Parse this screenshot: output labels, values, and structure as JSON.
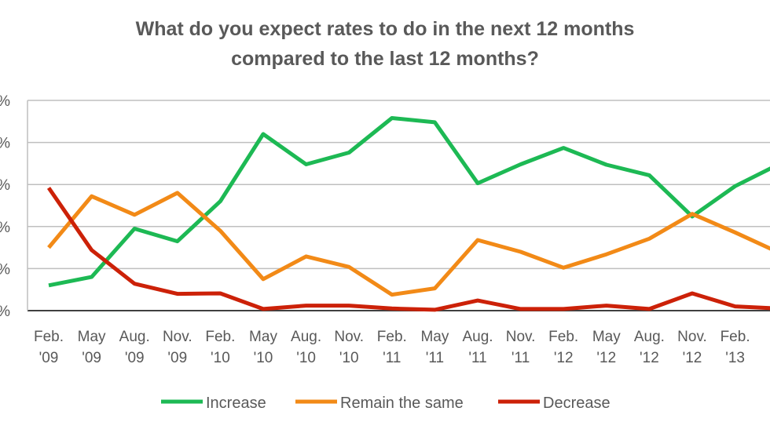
{
  "chart_data": {
    "type": "line",
    "title_lines": [
      "What do you expect rates to do in the next 12 months",
      "compared to the last 12 months?"
    ],
    "categories": [
      [
        "Feb.",
        "'09"
      ],
      [
        "May",
        "'09"
      ],
      [
        "Aug.",
        "'09"
      ],
      [
        "Nov.",
        "'09"
      ],
      [
        "Feb.",
        "'10"
      ],
      [
        "May",
        "'10"
      ],
      [
        "Aug.",
        "'10"
      ],
      [
        "Nov.",
        "'10"
      ],
      [
        "Feb.",
        "'11"
      ],
      [
        "May",
        "'11"
      ],
      [
        "Aug.",
        "'11"
      ],
      [
        "Nov.",
        "'11"
      ],
      [
        "Feb.",
        "'12"
      ],
      [
        "May",
        "'12"
      ],
      [
        "Aug.",
        "'12"
      ],
      [
        "Nov.",
        "'12"
      ],
      [
        "Feb.",
        "'13"
      ],
      [
        "",
        ""
      ]
    ],
    "y_tick_labels": [
      "%",
      "%",
      "%",
      "%",
      "%",
      "%"
    ],
    "ylim": [
      0,
      50
    ],
    "series": [
      {
        "name": "Increase",
        "color": "#1DB954",
        "values": [
          6,
          8,
          19.5,
          16.5,
          26,
          42,
          34.8,
          37.6,
          45.8,
          44.8,
          30.3,
          34.8,
          38.7,
          34.7,
          32.2,
          22.4,
          29.6,
          34.7
        ]
      },
      {
        "name": "Remain the same",
        "color": "#F28A17",
        "values": [
          15,
          27.2,
          22.8,
          28,
          19,
          7.5,
          12.9,
          10.4,
          3.8,
          5.3,
          16.8,
          14,
          10.2,
          13.4,
          17.1,
          23,
          18.6,
          13.9
        ]
      },
      {
        "name": "Decrease",
        "color": "#CC2108",
        "values": [
          29.2,
          14.4,
          6.4,
          4,
          4.1,
          0.4,
          1.2,
          1.2,
          0.5,
          0.2,
          2.4,
          0.4,
          0.4,
          1.2,
          0.4,
          4.1,
          1,
          0.5
        ]
      }
    ]
  }
}
